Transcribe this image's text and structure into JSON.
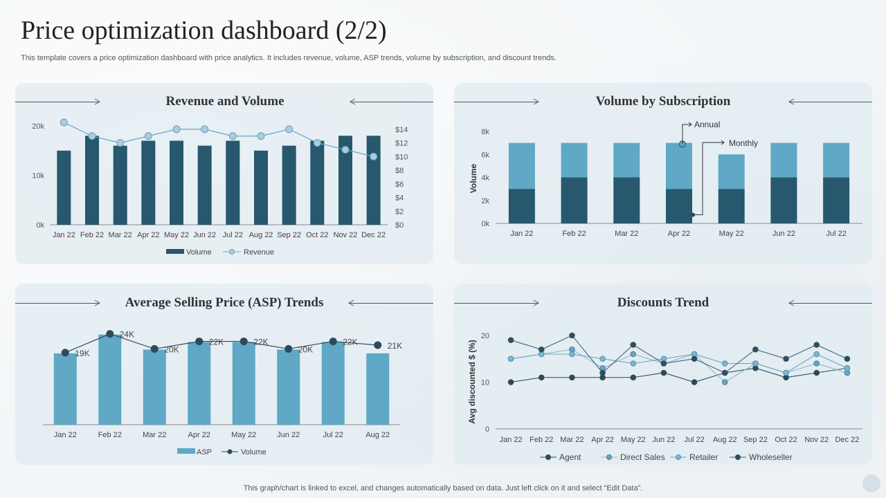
{
  "header": {
    "title": "Price optimization dashboard (2/2)",
    "subtitle": "This template covers a price optimization dashboard with price analytics. It includes revenue, volume, ASP trends, volume by subscription, and discount trends."
  },
  "footer": {
    "note": "This graph/chart is linked to excel,  and changes automatically based on data. Just left click on it and select “Edit Data”."
  },
  "colors": {
    "dark": "#27586d",
    "mid": "#5fa8c6",
    "light_marker": "#a9cde0",
    "navy": "#2d4a5c"
  },
  "chart_data": [
    {
      "id": "revenue_volume",
      "type": "bar",
      "title": "Revenue and Volume",
      "categories": [
        "Jan 22",
        "Feb 22",
        "Mar 22",
        "Apr 22",
        "May 22",
        "Jun 22",
        "Jul 22",
        "Aug 22",
        "Sep 22",
        "Oct 22",
        "Nov 22",
        "Dec 22"
      ],
      "series": [
        {
          "name": "Volume",
          "type": "bar",
          "axis": "left",
          "values": [
            15000,
            18000,
            16000,
            17000,
            17000,
            16000,
            17000,
            15000,
            16000,
            17000,
            18000,
            18000
          ]
        },
        {
          "name": "Revenue",
          "type": "line",
          "axis": "right",
          "values": [
            15,
            13,
            12,
            13,
            14,
            14,
            13,
            13,
            14,
            12,
            11,
            10
          ]
        }
      ],
      "left_ylim": [
        0,
        20000
      ],
      "left_ticks": [
        "0k",
        "10k",
        "20k"
      ],
      "right_ylim": [
        0,
        15
      ],
      "right_ticks": [
        "$0",
        "$2",
        "$4",
        "$6",
        "$8",
        "$10",
        "$12",
        "$14"
      ],
      "legend": [
        "Volume",
        "Revenue"
      ]
    },
    {
      "id": "volume_subscription",
      "type": "bar",
      "stacked": true,
      "title": "Volume by Subscription",
      "categories": [
        "Jan 22",
        "Feb 22",
        "Mar 22",
        "Apr 22",
        "May 22",
        "Jun 22",
        "Jul 22"
      ],
      "series": [
        {
          "name": "Monthly",
          "values": [
            3000,
            4000,
            4000,
            3000,
            3000,
            4000,
            4000
          ]
        },
        {
          "name": "Annual",
          "values": [
            4000,
            3000,
            3000,
            4000,
            3000,
            3000,
            3000
          ]
        }
      ],
      "ylabel": "Volume",
      "ylim": [
        0,
        8000
      ],
      "y_ticks": [
        "0k",
        "2k",
        "4k",
        "6k",
        "8k"
      ],
      "annotations": [
        "Annual",
        "Monthly"
      ]
    },
    {
      "id": "asp_trends",
      "type": "bar",
      "title": "Average Selling Price (ASP) Trends",
      "categories": [
        "Jan 22",
        "Feb 22",
        "Mar 22",
        "Apr 22",
        "May 22",
        "Jun 22",
        "Jul 22",
        "Aug 22"
      ],
      "series": [
        {
          "name": "ASP",
          "type": "bar",
          "values": [
            19,
            24,
            20,
            22,
            22,
            20,
            22,
            19
          ]
        },
        {
          "name": "Volume",
          "type": "line",
          "values": [
            19,
            24,
            20,
            22,
            22,
            20,
            22,
            21
          ],
          "labels": [
            "19K",
            "24K",
            "20K",
            "22K",
            "22K",
            "20K",
            "22K",
            "21K"
          ]
        }
      ],
      "ylim": [
        0,
        28
      ],
      "legend": [
        "ASP",
        "Volume"
      ]
    },
    {
      "id": "discounts_trend",
      "type": "line",
      "title": "Discounts Trend",
      "categories": [
        "Jan 22",
        "Feb 22",
        "Mar 22",
        "Apr 22",
        "May 22",
        "Jun 22",
        "Jul 22",
        "Aug 22",
        "Sep 22",
        "Oct 22",
        "Nov 22",
        "Dec 22"
      ],
      "series": [
        {
          "name": "Agent",
          "values": [
            10,
            11,
            11,
            11,
            11,
            12,
            10,
            12,
            13,
            11,
            12,
            13
          ]
        },
        {
          "name": "Direct Sales",
          "values": [
            15,
            16,
            17,
            13,
            16,
            14,
            16,
            10,
            14,
            12,
            14,
            12
          ]
        },
        {
          "name": "Retailer",
          "values": [
            15,
            16,
            16,
            15,
            14,
            15,
            16,
            14,
            14,
            12,
            16,
            13
          ]
        },
        {
          "name": "Wholeseller",
          "values": [
            19,
            17,
            20,
            12,
            18,
            14,
            15,
            12,
            17,
            15,
            18,
            15
          ]
        }
      ],
      "ylabel": "Avg discounted $ (%)",
      "ylim": [
        0,
        20
      ],
      "y_ticks": [
        "0",
        "10",
        "20"
      ],
      "legend": [
        "Agent",
        "Direct Sales",
        "Retailer",
        "Wholeseller"
      ]
    }
  ]
}
